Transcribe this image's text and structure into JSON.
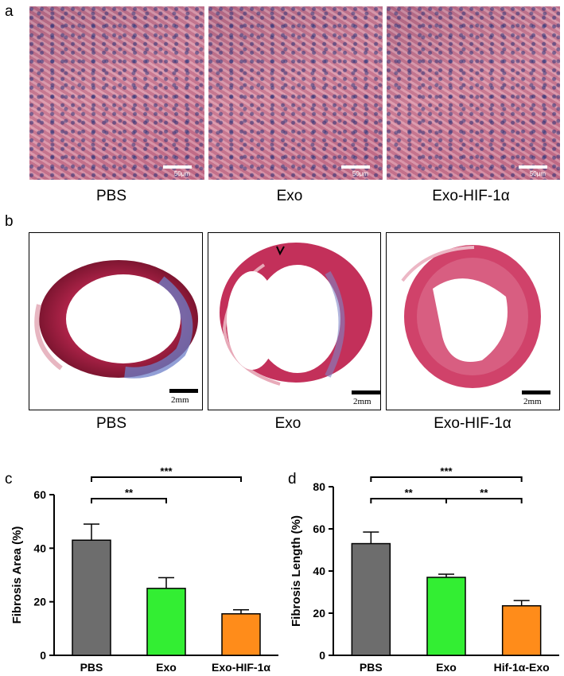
{
  "panel_labels": {
    "a": "a",
    "b": "b",
    "c": "c",
    "d": "d"
  },
  "panel_a": {
    "images": [
      {
        "caption": "PBS",
        "scale_label": "50μm"
      },
      {
        "caption": "Exo",
        "scale_label": "50μm"
      },
      {
        "caption": "Exo-HIF-1α",
        "scale_label": "50μm"
      }
    ]
  },
  "panel_b": {
    "images": [
      {
        "caption": "PBS",
        "scale_label": "2mm"
      },
      {
        "caption": "Exo",
        "scale_label": "2mm"
      },
      {
        "caption": "Exo-HIF-1α",
        "scale_label": "2mm"
      }
    ]
  },
  "chart_data": [
    {
      "type": "bar",
      "title": "",
      "xlabel": "",
      "ylabel": "Fibrosis Area (%)",
      "categories": [
        "PBS",
        "Exo",
        "Exo-HIF-1α"
      ],
      "values": [
        43,
        25,
        15.5
      ],
      "errors": [
        6,
        4,
        1.5
      ],
      "colors": [
        "#6d6d6d",
        "#33ee33",
        "#ff8c1a"
      ],
      "ylim": [
        0,
        60
      ],
      "yticks": [
        "0",
        "20",
        "40",
        "60"
      ],
      "significance": [
        {
          "from": 0,
          "to": 1,
          "label": "**"
        },
        {
          "from": 0,
          "to": 2,
          "label": "***"
        }
      ]
    },
    {
      "type": "bar",
      "title": "",
      "xlabel": "",
      "ylabel": "Fibrosis Length (%)",
      "categories": [
        "PBS",
        "Exo",
        "Hif-1α-Exo"
      ],
      "values": [
        53,
        37,
        23.5
      ],
      "errors": [
        5.5,
        1.5,
        2.5
      ],
      "colors": [
        "#6d6d6d",
        "#33ee33",
        "#ff8c1a"
      ],
      "ylim": [
        0,
        80
      ],
      "yticks": [
        "0",
        "20",
        "40",
        "60",
        "80"
      ],
      "significance": [
        {
          "from": 0,
          "to": 1,
          "label": "**"
        },
        {
          "from": 1,
          "to": 2,
          "label": "**"
        },
        {
          "from": 0,
          "to": 2,
          "label": "***"
        }
      ]
    }
  ]
}
